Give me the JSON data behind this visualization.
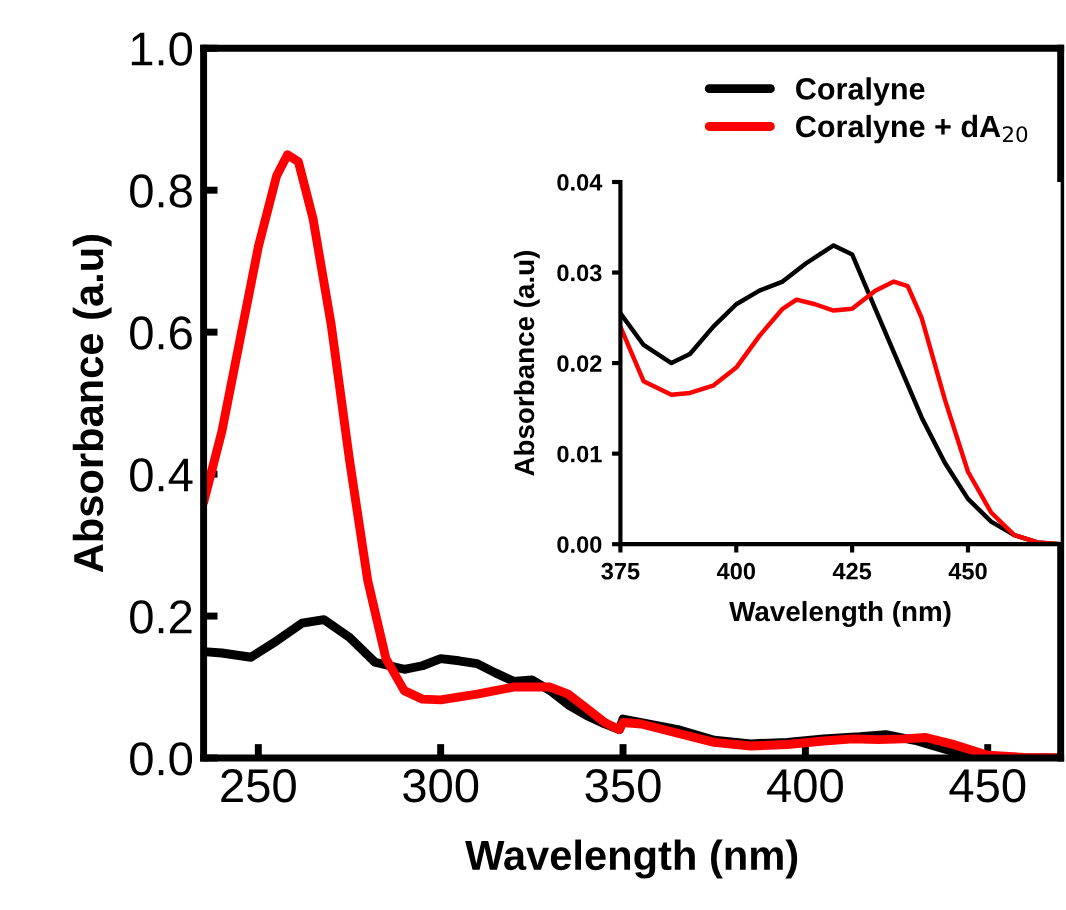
{
  "chart_data": [
    {
      "type": "line",
      "xlabel": "Wavelength (nm)",
      "ylabel": "Absorbance (a.u)",
      "xlim": [
        235,
        470
      ],
      "xticks": [
        250,
        300,
        350,
        400,
        450
      ],
      "ylim": [
        0,
        1.0
      ],
      "yticks": [
        {
          "value": 0,
          "label": "0.0"
        },
        {
          "value": 0.2,
          "label": "0.2"
        },
        {
          "value": 0.4,
          "label": "0.4"
        },
        {
          "value": 0.6,
          "label": "0.6"
        },
        {
          "value": 0.8,
          "label": "0.8"
        },
        {
          "value": 1.0,
          "label": "1.0"
        }
      ],
      "legend": "top right",
      "grid": false,
      "series": [
        {
          "name": "Coralyne",
          "color": "#000000",
          "x": [
            235,
            240,
            248,
            255,
            262,
            268,
            275,
            282,
            290,
            295,
            300,
            305,
            310,
            315,
            320,
            325,
            330,
            335,
            340,
            345,
            349,
            350,
            355,
            365,
            375,
            385,
            395,
            405,
            415,
            422,
            430,
            440,
            450,
            460,
            470
          ],
          "values": [
            0.15,
            0.148,
            0.142,
            0.165,
            0.19,
            0.195,
            0.17,
            0.135,
            0.125,
            0.13,
            0.14,
            0.137,
            0.133,
            0.12,
            0.108,
            0.11,
            0.095,
            0.075,
            0.06,
            0.048,
            0.04,
            0.055,
            0.05,
            0.04,
            0.025,
            0.02,
            0.022,
            0.027,
            0.03,
            0.033,
            0.025,
            0.01,
            0.002,
            0,
            0
          ]
        },
        {
          "name": "Coralyne + dA$_{20}$",
          "color": "#ff0000",
          "x": [
            235,
            240,
            245,
            250,
            255,
            258,
            261,
            265,
            270,
            275,
            280,
            285,
            290,
            295,
            300,
            310,
            320,
            330,
            335,
            340,
            345,
            349,
            350,
            355,
            365,
            375,
            385,
            395,
            405,
            413,
            420,
            427,
            433,
            440,
            450,
            460,
            470
          ],
          "values": [
            0.36,
            0.46,
            0.59,
            0.72,
            0.82,
            0.85,
            0.84,
            0.76,
            0.61,
            0.42,
            0.25,
            0.14,
            0.095,
            0.083,
            0.082,
            0.09,
            0.1,
            0.1,
            0.09,
            0.07,
            0.05,
            0.04,
            0.05,
            0.048,
            0.035,
            0.022,
            0.017,
            0.019,
            0.024,
            0.027,
            0.026,
            0.027,
            0.029,
            0.02,
            0.004,
            0.001,
            0
          ]
        }
      ]
    },
    {
      "type": "line",
      "xlabel": "Wavelength (nm)",
      "ylabel": "Absorbance (a.u)",
      "xlim": [
        375,
        470
      ],
      "xticks": [
        375,
        400,
        425,
        450
      ],
      "ylim": [
        0,
        0.04
      ],
      "yticks": [
        {
          "value": 0,
          "label": "0.00"
        },
        {
          "value": 0.01,
          "label": "0.01"
        },
        {
          "value": 0.02,
          "label": "0.02"
        },
        {
          "value": 0.03,
          "label": "0.03"
        },
        {
          "value": 0.04,
          "label": "0.04"
        }
      ],
      "grid": false,
      "series": [
        {
          "color": "#000000",
          "x": [
            375,
            380,
            386,
            390,
            395,
            400,
            405,
            410,
            415,
            421,
            425,
            430,
            435,
            440,
            445,
            450,
            455,
            460,
            465,
            470
          ],
          "values": [
            0.0255,
            0.022,
            0.02,
            0.021,
            0.024,
            0.0265,
            0.028,
            0.029,
            0.031,
            0.033,
            0.032,
            0.026,
            0.02,
            0.014,
            0.009,
            0.005,
            0.0025,
            0.001,
            0.0002,
            0
          ]
        },
        {
          "color": "#ff0000",
          "x": [
            375,
            380,
            386,
            390,
            395,
            400,
            405,
            410,
            413,
            417,
            421,
            425,
            430,
            434,
            437,
            440,
            445,
            450,
            455,
            460,
            465,
            470
          ],
          "values": [
            0.024,
            0.018,
            0.0165,
            0.0167,
            0.0175,
            0.0195,
            0.023,
            0.026,
            0.027,
            0.0265,
            0.0258,
            0.026,
            0.028,
            0.029,
            0.0285,
            0.025,
            0.016,
            0.008,
            0.0035,
            0.001,
            0.0002,
            0
          ]
        }
      ]
    }
  ]
}
